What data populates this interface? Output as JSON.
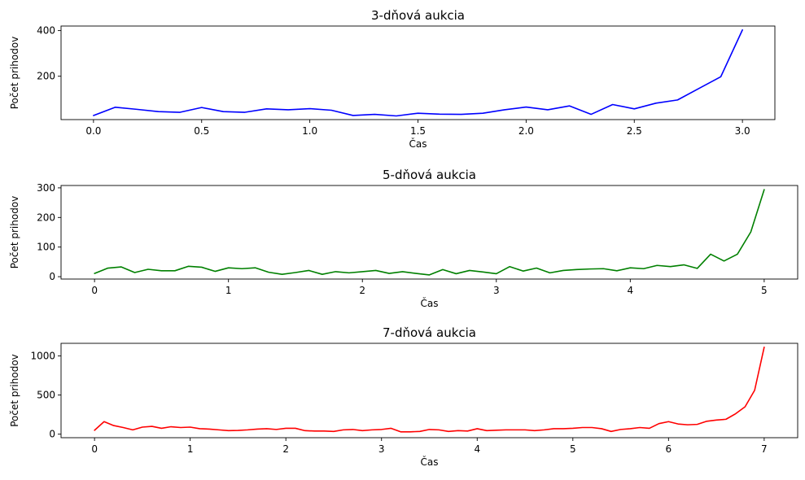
{
  "chart_data": [
    {
      "type": "line",
      "title": "3-dňová aukcia",
      "xlabel": "Čas",
      "ylabel": "Počet prihodov",
      "color": "#0000ff",
      "xlim": [
        -0.15,
        3.15
      ],
      "ylim": [
        10,
        420
      ],
      "xticks": [
        0.0,
        0.5,
        1.0,
        1.5,
        2.0,
        2.5,
        3.0
      ],
      "xtick_labels": [
        "0.0",
        "0.5",
        "1.0",
        "1.5",
        "2.0",
        "2.5",
        "3.0"
      ],
      "yticks": [
        200,
        400
      ],
      "ytick_labels": [
        "200",
        "400"
      ],
      "x": [
        0.0,
        0.1,
        0.2,
        0.3,
        0.4,
        0.5,
        0.6,
        0.7,
        0.8,
        0.9,
        1.0,
        1.1,
        1.2,
        1.3,
        1.4,
        1.5,
        1.6,
        1.7,
        1.8,
        1.9,
        2.0,
        2.1,
        2.2,
        2.3,
        2.4,
        2.5,
        2.6,
        2.7,
        2.8,
        2.9,
        3.0
      ],
      "y": [
        28,
        64,
        55,
        45,
        42,
        63,
        45,
        42,
        57,
        53,
        58,
        51,
        28,
        33,
        26,
        38,
        34,
        33,
        38,
        53,
        65,
        53,
        70,
        33,
        76,
        57,
        82,
        96,
        147,
        198,
        403
      ]
    },
    {
      "type": "line",
      "title": "5-dňová aukcia",
      "xlabel": "Čas",
      "ylabel": "Počet prihodov",
      "color": "#008000",
      "xlim": [
        -0.25,
        5.25
      ],
      "ylim": [
        -8,
        308
      ],
      "xticks": [
        0,
        1,
        2,
        3,
        4,
        5
      ],
      "xtick_labels": [
        "0",
        "1",
        "2",
        "3",
        "4",
        "5"
      ],
      "yticks": [
        0,
        100,
        200,
        300
      ],
      "ytick_labels": [
        "0",
        "100",
        "200",
        "300"
      ],
      "x": [
        0.0,
        0.1,
        0.2,
        0.3,
        0.4,
        0.5,
        0.6,
        0.7,
        0.8,
        0.9,
        1.0,
        1.1,
        1.2,
        1.3,
        1.4,
        1.5,
        1.6,
        1.7,
        1.8,
        1.9,
        2.0,
        2.1,
        2.2,
        2.3,
        2.4,
        2.5,
        2.6,
        2.7,
        2.8,
        2.9,
        3.0,
        3.1,
        3.2,
        3.3,
        3.4,
        3.5,
        3.6,
        3.7,
        3.8,
        3.9,
        4.0,
        4.1,
        4.2,
        4.3,
        4.4,
        4.5,
        4.6,
        4.7,
        4.8,
        4.9,
        5.0
      ],
      "y": [
        11,
        29,
        33,
        14,
        25,
        20,
        20,
        35,
        32,
        18,
        30,
        27,
        30,
        15,
        8,
        14,
        21,
        8,
        17,
        13,
        17,
        21,
        11,
        17,
        11,
        6,
        24,
        10,
        21,
        16,
        10,
        34,
        19,
        29,
        13,
        21,
        24,
        26,
        27,
        20,
        30,
        27,
        38,
        34,
        40,
        28,
        76,
        53,
        76,
        151,
        294
      ]
    },
    {
      "type": "line",
      "title": "7-dňová aukcia",
      "xlabel": "Čas",
      "ylabel": "Počet prihodov",
      "color": "#ff0000",
      "xlim": [
        -0.35,
        7.35
      ],
      "ylim": [
        -45,
        1160
      ],
      "xticks": [
        0,
        1,
        2,
        3,
        4,
        5,
        6,
        7
      ],
      "xtick_labels": [
        "0",
        "1",
        "2",
        "3",
        "4",
        "5",
        "6",
        "7"
      ],
      "yticks": [
        0,
        500,
        1000
      ],
      "ytick_labels": [
        "0",
        "500",
        "1000"
      ],
      "x": [
        0.0,
        0.1,
        0.2,
        0.3,
        0.4,
        0.5,
        0.6,
        0.7,
        0.8,
        0.9,
        1.0,
        1.1,
        1.2,
        1.3,
        1.4,
        1.5,
        1.6,
        1.7,
        1.8,
        1.9,
        2.0,
        2.1,
        2.2,
        2.3,
        2.4,
        2.5,
        2.6,
        2.7,
        2.8,
        2.9,
        3.0,
        3.1,
        3.2,
        3.3,
        3.4,
        3.5,
        3.6,
        3.7,
        3.8,
        3.9,
        4.0,
        4.1,
        4.2,
        4.3,
        4.4,
        4.5,
        4.6,
        4.7,
        4.8,
        4.9,
        5.0,
        5.1,
        5.2,
        5.3,
        5.4,
        5.5,
        5.6,
        5.7,
        5.8,
        5.9,
        6.0,
        6.1,
        6.2,
        6.3,
        6.4,
        6.5,
        6.6,
        6.7,
        6.8,
        6.9,
        7.0
      ],
      "y": [
        50,
        160,
        110,
        85,
        55,
        90,
        100,
        75,
        95,
        85,
        90,
        70,
        65,
        55,
        45,
        48,
        55,
        65,
        70,
        60,
        75,
        75,
        45,
        40,
        40,
        35,
        55,
        60,
        45,
        55,
        60,
        75,
        30,
        30,
        35,
        60,
        55,
        35,
        45,
        40,
        70,
        45,
        50,
        55,
        55,
        55,
        45,
        55,
        70,
        70,
        75,
        85,
        85,
        70,
        35,
        60,
        70,
        85,
        75,
        135,
        160,
        130,
        120,
        125,
        165,
        180,
        190,
        260,
        350,
        560,
        1110
      ]
    }
  ]
}
